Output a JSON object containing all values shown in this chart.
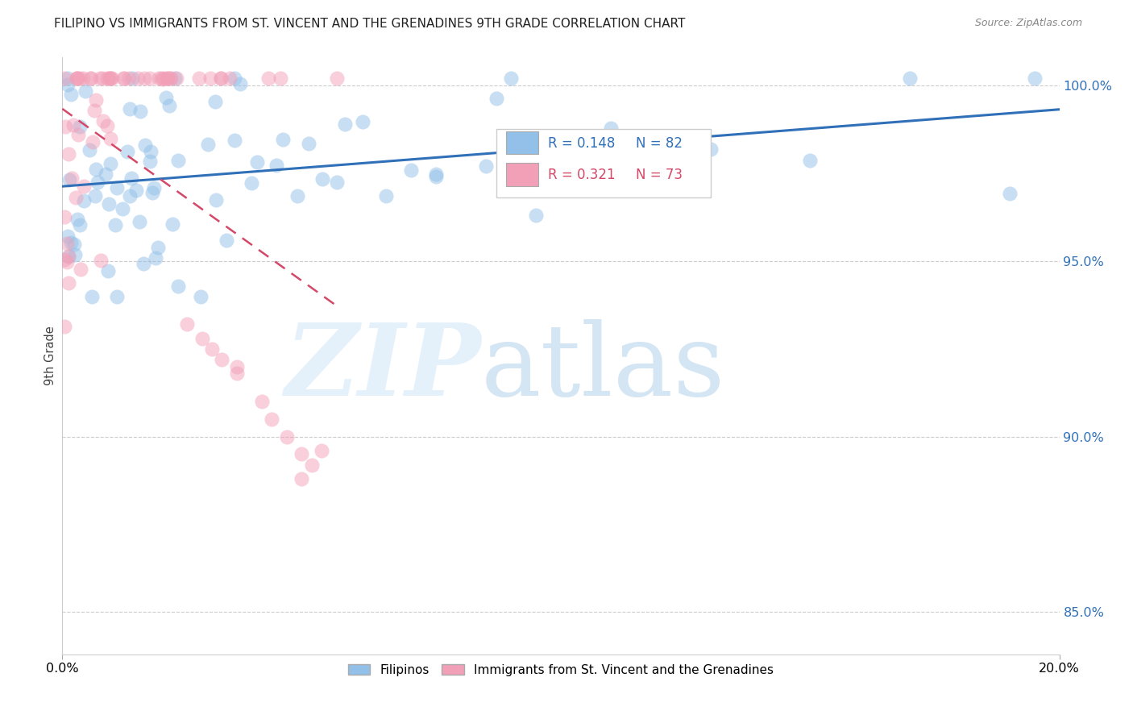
{
  "title": "FILIPINO VS IMMIGRANTS FROM ST. VINCENT AND THE GRENADINES 9TH GRADE CORRELATION CHART",
  "source": "Source: ZipAtlas.com",
  "ylabel": "9th Grade",
  "xlim": [
    0.0,
    0.2
  ],
  "ylim": [
    0.838,
    1.008
  ],
  "yticks": [
    0.85,
    0.9,
    0.95,
    1.0
  ],
  "ytick_labels": [
    "85.0%",
    "90.0%",
    "95.0%",
    "100.0%"
  ],
  "blue_R": 0.148,
  "blue_N": 82,
  "pink_R": 0.321,
  "pink_N": 73,
  "blue_color": "#92C0E8",
  "pink_color": "#F2A0B8",
  "trend_blue_color": "#3070B8",
  "trend_pink_color": "#D44868",
  "legend_R_color": "#3070B8",
  "legend_N_color": "#3070B8",
  "legend_pink_R_color": "#D44868",
  "legend_pink_N_color": "#D44868",
  "background_color": "#FFFFFF",
  "watermark_zip_color": "#C8DCF0",
  "watermark_atlas_color": "#A8C8E0"
}
